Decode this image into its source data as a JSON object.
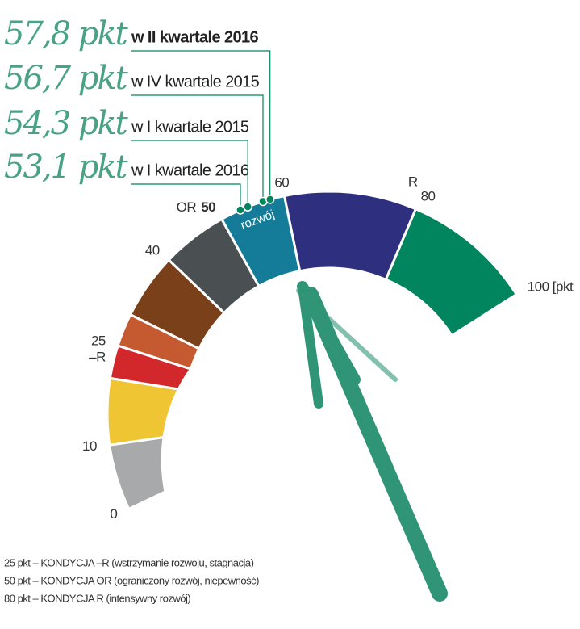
{
  "chart_data": {
    "type": "gauge",
    "segments": [
      {
        "from": 0,
        "to": 10,
        "color": "#a7a9aa"
      },
      {
        "from": 10,
        "to": 20,
        "color": "#f0c533"
      },
      {
        "from": 20,
        "to": 25,
        "color": "#d3282b"
      },
      {
        "from": 25,
        "to": 30,
        "color": "#c5592f"
      },
      {
        "from": 30,
        "to": 40,
        "color": "#7a401a"
      },
      {
        "from": 40,
        "to": 50,
        "color": "#4a4f52"
      },
      {
        "from": 50,
        "to": 60,
        "color": "#147b99"
      },
      {
        "from": 60,
        "to": 80,
        "color": "#2e2f7e"
      },
      {
        "from": 80,
        "to": 100,
        "color": "#00855f"
      }
    ],
    "segment_label": {
      "value": 55,
      "text": "rozwój"
    },
    "xlim": [
      0,
      100
    ],
    "xticks": [
      0,
      10,
      25,
      40,
      50,
      60,
      80,
      {
        "value": 100,
        "label": "100 [pkt"
      }
    ],
    "annotations": [
      {
        "value": 25,
        "text": "–R",
        "color": "#c5592f"
      },
      {
        "value": 50,
        "text": "OR",
        "color": "#555555"
      },
      {
        "value": 80,
        "text": "R",
        "color": "#00855f"
      }
    ],
    "marker_color": "#00855f",
    "markers": [
      {
        "value": 53.1,
        "value_label": "53,1 pkt",
        "period": "w I kwartale 2016",
        "highlight": false
      },
      {
        "value": 54.3,
        "value_label": "54,3 pkt",
        "period": "w I kwartale 2015",
        "highlight": false
      },
      {
        "value": 56.7,
        "value_label": "56,7 pkt",
        "period": "w IV kwartale 2015",
        "highlight": false
      },
      {
        "value": 57.8,
        "value_label": "57,8 pkt",
        "period": "w II kwartale 2016",
        "highlight": true
      }
    ],
    "notes": [
      "25 pkt – KONDYCJA –R (wstrzymanie rozwoju, stagnacja)",
      "50 pkt – KONDYCJA OR (ograniczony rozwój, niepewność)",
      "80 pkt – KONDYCJA R (intensywny rozwój)"
    ]
  }
}
